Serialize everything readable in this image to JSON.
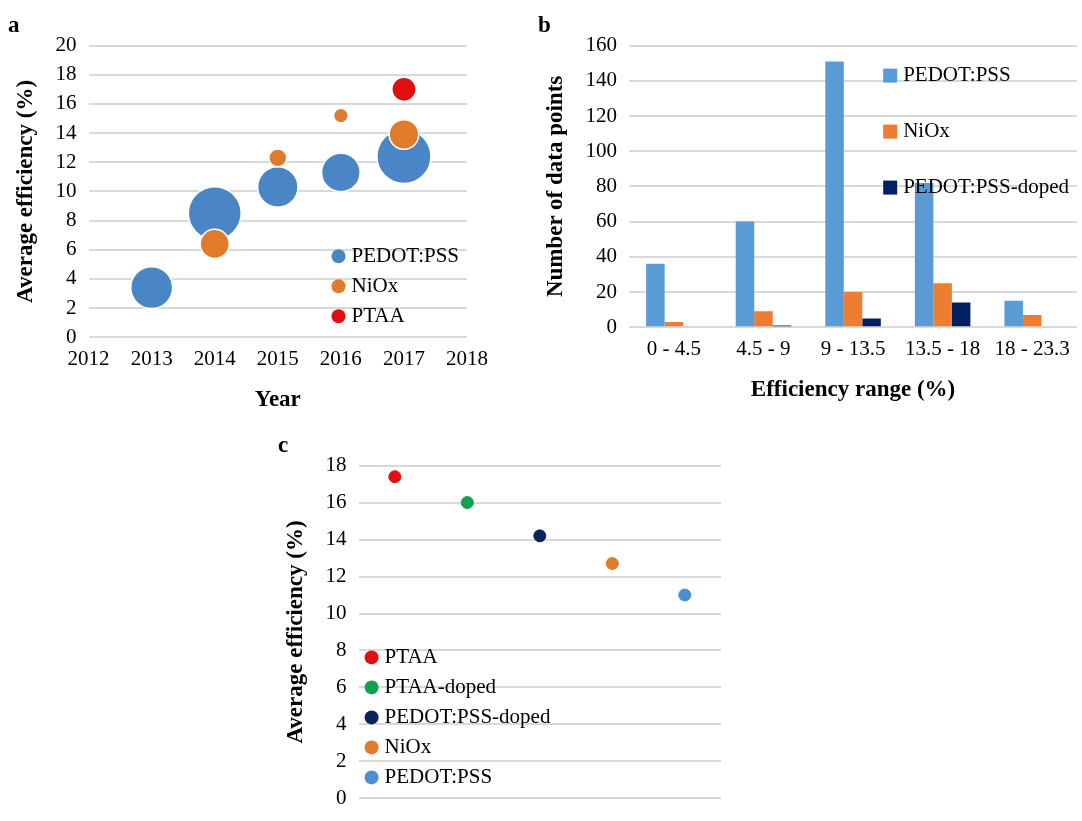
{
  "chart_data": [
    {
      "type": "bubble",
      "title": "a",
      "xlabel": "Year",
      "ylabel": "Average efficiency (%)",
      "xlim": [
        2012,
        2018
      ],
      "xticks": [
        2012,
        2013,
        2014,
        2015,
        2016,
        2017,
        2018
      ],
      "ylim": [
        0,
        20
      ],
      "yticks": [
        0,
        2,
        4,
        6,
        8,
        10,
        12,
        14,
        16,
        18,
        20
      ],
      "grid": "y",
      "legend": "bottom right",
      "marker": "circle",
      "series": [
        {
          "name": "PEDOT:PSS",
          "color": "#4a86c5",
          "x": [
            2013,
            2014,
            2015,
            2016,
            2017
          ],
          "values": [
            3.4,
            8.5,
            10.3,
            11.3,
            12.4
          ],
          "sizes": [
            0.6,
            0.96,
            0.56,
            0.51,
            1
          ]
        },
        {
          "name": "NiOx",
          "color": "#e07b2c",
          "x": [
            2014,
            2015,
            2016,
            2017
          ],
          "values": [
            6.4,
            12.3,
            15.2,
            13.9
          ],
          "sizes": [
            0.29,
            0.11,
            0.074,
            0.3
          ]
        },
        {
          "name": "PTAA",
          "color": "#e01010",
          "x": [
            2017
          ],
          "values": [
            17.0
          ],
          "sizes": [
            0.2
          ]
        }
      ]
    },
    {
      "type": "bar",
      "title": "b",
      "xlabel": "Efficiency range (%)",
      "ylabel": "Number of data points",
      "categories": [
        "0 - 4.5",
        "4.5 - 9",
        "9 - 13.5",
        "13.5 - 18",
        "18 - 23.3"
      ],
      "ylim": [
        0,
        160
      ],
      "yticks": [
        0,
        20,
        40,
        60,
        80,
        100,
        120,
        140,
        160
      ],
      "grid": "y",
      "legend": "top right",
      "series": [
        {
          "name": "PEDOT:PSS",
          "color": "#5b9bd5",
          "values": [
            36,
            60,
            151,
            82,
            15
          ]
        },
        {
          "name": "NiOx",
          "color": "#ed7d31",
          "values": [
            3,
            9,
            20,
            25,
            7
          ]
        },
        {
          "name": "PEDOT:PSS-doped",
          "color": "#002060",
          "values": [
            0,
            1,
            5,
            14,
            0
          ]
        }
      ]
    },
    {
      "type": "scatter",
      "title": "c",
      "ylabel": "Average efficiency (%)",
      "categories": [
        null,
        null,
        null,
        null,
        null
      ],
      "ylim": [
        0,
        18
      ],
      "yticks": [
        0,
        2,
        4,
        6,
        8,
        10,
        12,
        14,
        16,
        18
      ],
      "grid": "y",
      "legend": "bottom left",
      "marker": "circle",
      "tick_labels": "y",
      "series": [
        {
          "name": "PTAA",
          "color": "#e01010",
          "values": [
            17.4,
            null,
            null,
            null,
            null
          ]
        },
        {
          "name": "PTAA-doped",
          "color": "#10a050",
          "values": [
            null,
            16.0,
            null,
            null,
            null
          ]
        },
        {
          "name": "PEDOT:PSS-doped",
          "color": "#0a2260",
          "values": [
            null,
            null,
            14.2,
            null,
            null
          ]
        },
        {
          "name": "NiOx",
          "color": "#e07b2c",
          "values": [
            null,
            null,
            null,
            12.7,
            null
          ]
        },
        {
          "name": "PEDOT:PSS",
          "color": "#4a90d0",
          "values": [
            null,
            null,
            null,
            null,
            11.0
          ]
        }
      ]
    }
  ]
}
